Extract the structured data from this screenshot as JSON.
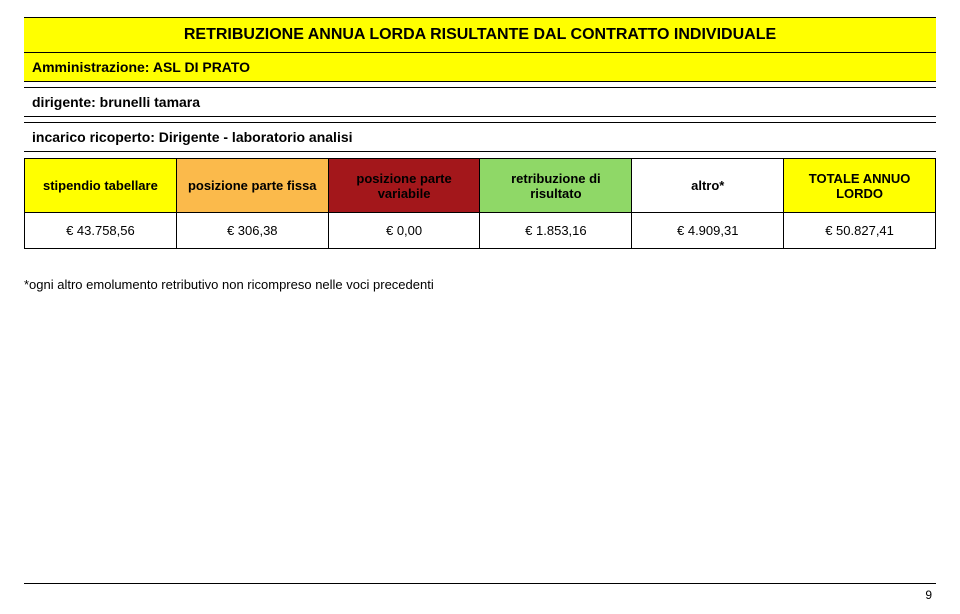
{
  "title": "RETRIBUZIONE ANNUA LORDA RISULTANTE DAL CONTRATTO INDIVIDUALE",
  "admin_label": "Amministrazione: ASL DI PRATO",
  "dirigente": "dirigente: brunelli tamara",
  "incarico": "incarico ricoperto: Dirigente - laboratorio analisi",
  "headers": {
    "col1": "stipendio tabellare",
    "col2": "posizione parte fissa",
    "col3": "posizione parte variabile",
    "col4": "retribuzione di risultato",
    "col5": "altro*",
    "col6": "TOTALE ANNUO LORDO"
  },
  "values": {
    "col1": "€ 43.758,56",
    "col2": "€ 306,38",
    "col3": "€ 0,00",
    "col4": "€ 1.853,16",
    "col5": "€ 4.909,31",
    "col6": "€ 50.827,41"
  },
  "footnote": "*ogni altro emolumento retributivo non ricompreso nelle voci precedenti",
  "page_number": "9",
  "colors": {
    "yellow": "#ffff00",
    "orange": "#fbba4b",
    "darkred": "#a3171b",
    "green": "#8fd867",
    "white": "#ffffff",
    "border": "#000000"
  }
}
